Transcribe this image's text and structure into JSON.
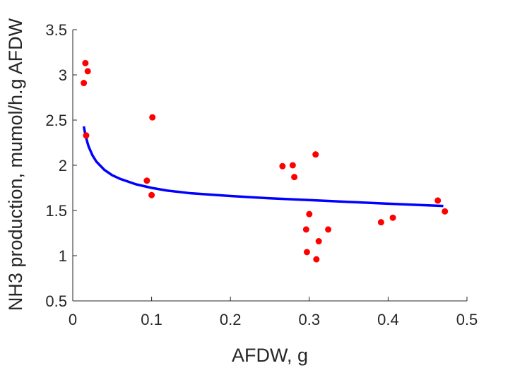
{
  "chart_data": {
    "type": "scatter",
    "xlabel": "AFDW, g",
    "ylabel": "NH3 production, mumol/h.g AFDW",
    "xlim": [
      0,
      0.5
    ],
    "ylim": [
      0.5,
      3.5
    ],
    "xticks": [
      0,
      0.1,
      0.2,
      0.3,
      0.4,
      0.5
    ],
    "yticks": [
      0.5,
      1,
      1.5,
      2,
      2.5,
      3,
      3.5
    ],
    "xtick_labels": [
      "0",
      "0.1",
      "0.2",
      "0.3",
      "0.4",
      "0.5"
    ],
    "ytick_labels": [
      "0.5",
      "1",
      "1.5",
      "2",
      "2.5",
      "3",
      "3.5"
    ],
    "grid": false,
    "series": [
      {
        "kind": "points",
        "color": "#ff0000",
        "x": [
          0.016,
          0.019,
          0.014,
          0.017,
          0.101,
          0.094,
          0.1,
          0.266,
          0.279,
          0.281,
          0.308,
          0.3,
          0.296,
          0.324,
          0.312,
          0.297,
          0.309,
          0.391,
          0.406,
          0.463,
          0.472
        ],
        "y": [
          3.13,
          3.04,
          2.91,
          2.33,
          2.53,
          1.83,
          1.67,
          1.99,
          2.0,
          1.87,
          2.12,
          1.46,
          1.29,
          1.29,
          1.16,
          1.04,
          0.96,
          1.37,
          1.42,
          1.61,
          1.49
        ]
      },
      {
        "kind": "fit-line",
        "color": "#0000ff",
        "x": [
          0.014,
          0.016,
          0.018,
          0.02,
          0.025,
          0.03,
          0.04,
          0.05,
          0.06,
          0.08,
          0.1,
          0.12,
          0.15,
          0.2,
          0.25,
          0.3,
          0.35,
          0.4,
          0.47
        ],
        "y": [
          2.43,
          2.34,
          2.27,
          2.21,
          2.11,
          2.04,
          1.95,
          1.89,
          1.85,
          1.79,
          1.75,
          1.72,
          1.69,
          1.66,
          1.635,
          1.615,
          1.595,
          1.575,
          1.55
        ]
      }
    ]
  }
}
